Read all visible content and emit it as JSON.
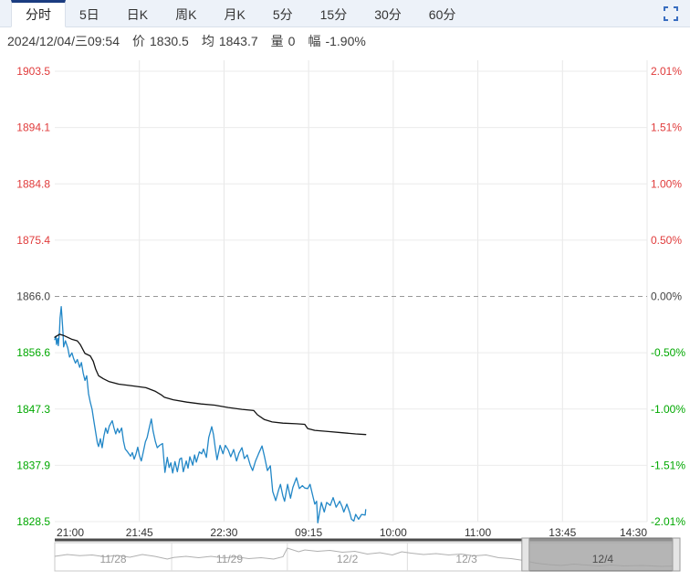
{
  "toolbar": {
    "tabs": [
      {
        "id": "fenshi",
        "label": "分时",
        "active": true
      },
      {
        "id": "5d",
        "label": "5日",
        "active": false
      },
      {
        "id": "day-k",
        "label": "日K",
        "active": false
      },
      {
        "id": "week-k",
        "label": "周K",
        "active": false
      },
      {
        "id": "month-k",
        "label": "月K",
        "active": false
      },
      {
        "id": "5m",
        "label": "5分",
        "active": false
      },
      {
        "id": "15m",
        "label": "15分",
        "active": false
      },
      {
        "id": "30m",
        "label": "30分",
        "active": false
      },
      {
        "id": "60m",
        "label": "60分",
        "active": false
      }
    ]
  },
  "info_bar": {
    "datetime": "2024/12/04/三09:54",
    "fields": [
      {
        "label": "价",
        "value": "1830.5"
      },
      {
        "label": "均",
        "value": "1843.7"
      },
      {
        "label": "量",
        "value": "0"
      },
      {
        "label": "幅",
        "value": "-1.90%"
      }
    ]
  },
  "chart_data": {
    "type": "line",
    "x_ticks": [
      "21:00",
      "21:45",
      "22:30",
      "09:15",
      "10:00",
      "11:00",
      "13:45",
      "14:30"
    ],
    "y_left_labels": [
      "1903.5",
      "1894.1",
      "1884.8",
      "1875.4",
      "1866.0",
      "1856.6",
      "1847.3",
      "1837.9",
      "1828.5"
    ],
    "y_right_labels": [
      "2.01%",
      "1.51%",
      "1.00%",
      "0.50%",
      "0.00%",
      "-0.50%",
      "-1.00%",
      "-1.51%",
      "-2.01%"
    ],
    "base_price": 1866.0,
    "price_range": [
      1828.5,
      1903.5
    ],
    "grid": true,
    "legend_position": "none",
    "colors": {
      "above_base": "#e03b3b",
      "below_base": "#00a800",
      "base_label": "#444444",
      "price_line": "#2287c7",
      "avg_line": "#131313",
      "grid_h": "#ebebeb",
      "grid_v": "#e7e7e7",
      "dashed_base": "#999999",
      "axis_text": "#333333",
      "axis_line": "#4a4a4a",
      "nav_border": "#c8c8c8",
      "nav_spark": "#b0b0b0",
      "nav_date": "#999999",
      "nav_selection_fill": "#a3a3a3",
      "nav_selection_stroke": "#6e6e6e",
      "nav_handle_fill": "#e5e5e5",
      "nav_handle_stroke": "#9a9a9a"
    },
    "series": [
      {
        "name": "price",
        "color_key": "price_line",
        "points": [
          [
            0,
            1858.8
          ],
          [
            0.002,
            1859.4
          ],
          [
            0.003,
            1858.0
          ],
          [
            0.005,
            1859.0
          ],
          [
            0.006,
            1857.8
          ],
          [
            0.008,
            1860.3
          ],
          [
            0.009,
            1862.4
          ],
          [
            0.011,
            1864.3
          ],
          [
            0.012,
            1862.8
          ],
          [
            0.014,
            1859.8
          ],
          [
            0.015,
            1857.6
          ],
          [
            0.018,
            1858.6
          ],
          [
            0.022,
            1857.4
          ],
          [
            0.025,
            1855.9
          ],
          [
            0.029,
            1856.6
          ],
          [
            0.032,
            1855.6
          ],
          [
            0.035,
            1854.9
          ],
          [
            0.038,
            1855.5
          ],
          [
            0.042,
            1854.2
          ],
          [
            0.045,
            1855.0
          ],
          [
            0.048,
            1853.2
          ],
          [
            0.051,
            1852.0
          ],
          [
            0.054,
            1852.8
          ],
          [
            0.057,
            1849.8
          ],
          [
            0.06,
            1848.4
          ],
          [
            0.063,
            1847.2
          ],
          [
            0.066,
            1845.3
          ],
          [
            0.069,
            1843.4
          ],
          [
            0.072,
            1841.6
          ],
          [
            0.074,
            1841.0
          ],
          [
            0.077,
            1842.3
          ],
          [
            0.08,
            1840.8
          ],
          [
            0.083,
            1842.8
          ],
          [
            0.086,
            1844.1
          ],
          [
            0.089,
            1843.2
          ],
          [
            0.092,
            1844.4
          ],
          [
            0.097,
            1845.3
          ],
          [
            0.1,
            1844.1
          ],
          [
            0.103,
            1843.1
          ],
          [
            0.106,
            1844.0
          ],
          [
            0.109,
            1843.3
          ],
          [
            0.113,
            1844.1
          ],
          [
            0.116,
            1841.9
          ],
          [
            0.119,
            1840.6
          ],
          [
            0.123,
            1840.1
          ],
          [
            0.128,
            1839.4
          ],
          [
            0.131,
            1840.0
          ],
          [
            0.134,
            1838.9
          ],
          [
            0.137,
            1839.7
          ],
          [
            0.14,
            1840.9
          ],
          [
            0.143,
            1839.5
          ],
          [
            0.146,
            1838.6
          ],
          [
            0.149,
            1839.9
          ],
          [
            0.153,
            1841.8
          ],
          [
            0.156,
            1842.5
          ],
          [
            0.159,
            1843.9
          ],
          [
            0.163,
            1845.6
          ],
          [
            0.166,
            1843.6
          ],
          [
            0.17,
            1841.8
          ],
          [
            0.173,
            1840.8
          ],
          [
            0.177,
            1841.2
          ],
          [
            0.182,
            1841.5
          ],
          [
            0.186,
            1836.7
          ],
          [
            0.19,
            1839.2
          ],
          [
            0.193,
            1837.5
          ],
          [
            0.196,
            1838.3
          ],
          [
            0.199,
            1836.6
          ],
          [
            0.203,
            1838.5
          ],
          [
            0.207,
            1836.8
          ],
          [
            0.211,
            1838.9
          ],
          [
            0.214,
            1839.1
          ],
          [
            0.217,
            1836.8
          ],
          [
            0.222,
            1838.6
          ],
          [
            0.225,
            1837.4
          ],
          [
            0.228,
            1839.3
          ],
          [
            0.233,
            1837.9
          ],
          [
            0.236,
            1839.6
          ],
          [
            0.239,
            1838.4
          ],
          [
            0.244,
            1840.1
          ],
          [
            0.248,
            1839.8
          ],
          [
            0.251,
            1840.6
          ],
          [
            0.256,
            1839.2
          ],
          [
            0.26,
            1842.5
          ],
          [
            0.265,
            1844.3
          ],
          [
            0.268,
            1843.0
          ],
          [
            0.271,
            1840.7
          ],
          [
            0.274,
            1838.8
          ],
          [
            0.279,
            1841.2
          ],
          [
            0.284,
            1839.8
          ],
          [
            0.288,
            1841.2
          ],
          [
            0.293,
            1840.4
          ],
          [
            0.297,
            1839.3
          ],
          [
            0.302,
            1840.5
          ],
          [
            0.307,
            1838.6
          ],
          [
            0.311,
            1839.9
          ],
          [
            0.316,
            1840.8
          ],
          [
            0.32,
            1839.0
          ],
          [
            0.325,
            1839.6
          ],
          [
            0.33,
            1837.9
          ],
          [
            0.334,
            1837.0
          ],
          [
            0.339,
            1838.6
          ],
          [
            0.344,
            1839.8
          ],
          [
            0.35,
            1841.1
          ],
          [
            0.354,
            1839.4
          ],
          [
            0.359,
            1837.0
          ],
          [
            0.364,
            1837.8
          ],
          [
            0.368,
            1833.5
          ],
          [
            0.373,
            1832.0
          ],
          [
            0.378,
            1833.8
          ],
          [
            0.381,
            1834.7
          ],
          [
            0.385,
            1832.8
          ],
          [
            0.388,
            1831.9
          ],
          [
            0.393,
            1834.7
          ],
          [
            0.398,
            1832.4
          ],
          [
            0.402,
            1834.2
          ],
          [
            0.408,
            1835.8
          ],
          [
            0.413,
            1834.0
          ],
          [
            0.418,
            1834.5
          ],
          [
            0.422,
            1834.1
          ],
          [
            0.427,
            1834.0
          ],
          [
            0.431,
            1834.7
          ],
          [
            0.436,
            1832.6
          ],
          [
            0.439,
            1831.4
          ],
          [
            0.442,
            1831.9
          ],
          [
            0.444,
            1828.3
          ],
          [
            0.447,
            1830.0
          ],
          [
            0.45,
            1831.7
          ],
          [
            0.455,
            1830.1
          ],
          [
            0.459,
            1831.7
          ],
          [
            0.465,
            1831.2
          ],
          [
            0.47,
            1832.5
          ],
          [
            0.475,
            1830.9
          ],
          [
            0.481,
            1831.9
          ],
          [
            0.485,
            1831.0
          ],
          [
            0.488,
            1830.1
          ],
          [
            0.493,
            1831.4
          ],
          [
            0.498,
            1830.0
          ],
          [
            0.501,
            1828.9
          ],
          [
            0.505,
            1828.6
          ],
          [
            0.508,
            1829.7
          ],
          [
            0.513,
            1828.9
          ],
          [
            0.518,
            1829.7
          ],
          [
            0.524,
            1829.6
          ],
          [
            0.525,
            1830.5
          ]
        ]
      },
      {
        "name": "average",
        "color_key": "avg_line",
        "points": [
          [
            0,
            1859.2
          ],
          [
            0.008,
            1859.7
          ],
          [
            0.015,
            1859.5
          ],
          [
            0.028,
            1858.9
          ],
          [
            0.038,
            1858.6
          ],
          [
            0.043,
            1858.0
          ],
          [
            0.051,
            1856.5
          ],
          [
            0.06,
            1856.1
          ],
          [
            0.065,
            1855.2
          ],
          [
            0.069,
            1853.9
          ],
          [
            0.074,
            1852.8
          ],
          [
            0.082,
            1852.3
          ],
          [
            0.092,
            1851.8
          ],
          [
            0.108,
            1851.4
          ],
          [
            0.131,
            1851.1
          ],
          [
            0.154,
            1850.8
          ],
          [
            0.17,
            1850.2
          ],
          [
            0.18,
            1849.6
          ],
          [
            0.185,
            1849.2
          ],
          [
            0.2,
            1848.8
          ],
          [
            0.223,
            1848.4
          ],
          [
            0.247,
            1848.1
          ],
          [
            0.27,
            1847.9
          ],
          [
            0.293,
            1847.5
          ],
          [
            0.316,
            1847.2
          ],
          [
            0.336,
            1847.0
          ],
          [
            0.342,
            1846.3
          ],
          [
            0.354,
            1845.5
          ],
          [
            0.367,
            1845.1
          ],
          [
            0.385,
            1844.9
          ],
          [
            0.408,
            1844.8
          ],
          [
            0.422,
            1844.7
          ],
          [
            0.427,
            1844.0
          ],
          [
            0.439,
            1843.7
          ],
          [
            0.462,
            1843.5
          ],
          [
            0.485,
            1843.3
          ],
          [
            0.508,
            1843.1
          ],
          [
            0.525,
            1843.0
          ]
        ]
      }
    ],
    "navigator": {
      "dates": [
        "11/28",
        "11/29",
        "12/2",
        "12/3",
        "12/4"
      ],
      "selected_date": "12/4",
      "section_bounds_frac": [
        0,
        0.187,
        0.372,
        0.564,
        0.753,
        1
      ],
      "selection_frac": [
        0.753,
        1
      ],
      "spark": [
        [
          0,
          0.52
        ],
        [
          0.02,
          0.6
        ],
        [
          0.04,
          0.55
        ],
        [
          0.06,
          0.58
        ],
        [
          0.08,
          0.5
        ],
        [
          0.1,
          0.56
        ],
        [
          0.12,
          0.48
        ],
        [
          0.14,
          0.6
        ],
        [
          0.16,
          0.52
        ],
        [
          0.18,
          0.4
        ],
        [
          0.19,
          0.47
        ],
        [
          0.21,
          0.52
        ],
        [
          0.23,
          0.46
        ],
        [
          0.25,
          0.52
        ],
        [
          0.27,
          0.45
        ],
        [
          0.29,
          0.5
        ],
        [
          0.31,
          0.42
        ],
        [
          0.33,
          0.46
        ],
        [
          0.35,
          0.4
        ],
        [
          0.365,
          0.5
        ],
        [
          0.372,
          0.88
        ],
        [
          0.39,
          0.72
        ],
        [
          0.4,
          0.8
        ],
        [
          0.42,
          0.74
        ],
        [
          0.44,
          0.78
        ],
        [
          0.46,
          0.7
        ],
        [
          0.48,
          0.74
        ],
        [
          0.5,
          0.62
        ],
        [
          0.52,
          0.68
        ],
        [
          0.54,
          0.58
        ],
        [
          0.555,
          0.72
        ],
        [
          0.57,
          0.66
        ],
        [
          0.59,
          0.6
        ],
        [
          0.61,
          0.64
        ],
        [
          0.63,
          0.58
        ],
        [
          0.65,
          0.62
        ],
        [
          0.67,
          0.54
        ],
        [
          0.69,
          0.58
        ],
        [
          0.71,
          0.46
        ],
        [
          0.73,
          0.42
        ],
        [
          0.75,
          0.34
        ],
        [
          0.77,
          0.22
        ],
        [
          0.79,
          0.16
        ],
        [
          0.81,
          0.12
        ],
        [
          0.83,
          0.18
        ],
        [
          0.85,
          0.14
        ],
        [
          0.87,
          0.1
        ],
        [
          0.89,
          0.14
        ],
        [
          0.91,
          0.1
        ],
        [
          0.94,
          0.12
        ],
        [
          0.97,
          0.08
        ],
        [
          1,
          0.1
        ]
      ]
    }
  }
}
